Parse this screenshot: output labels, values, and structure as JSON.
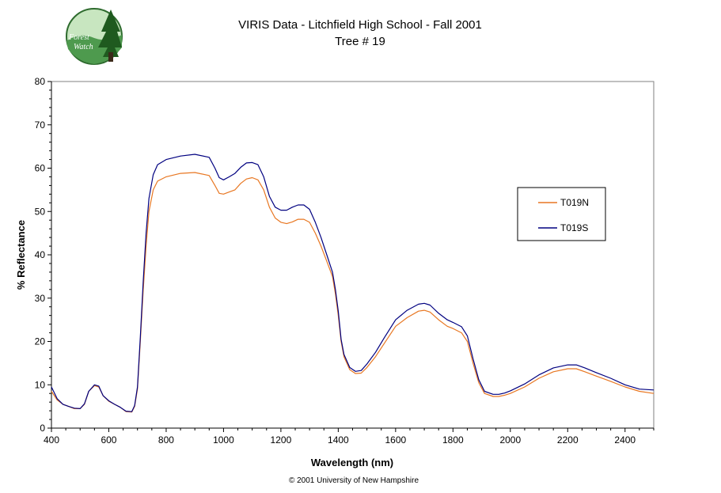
{
  "logo": {
    "line1": "Forest",
    "line2": "Watch"
  },
  "copyright": "© 2001 University of New Hampshire",
  "colors": {
    "T019N": "#e87722",
    "T019S": "#000080"
  },
  "chart_data": {
    "type": "line",
    "title": "VIRIS Data - Litchfield High School - Fall 2001",
    "subtitle": "Tree # 19",
    "xlabel": "Wavelength (nm)",
    "ylabel": "% Reflectance",
    "xlim": [
      400,
      2500
    ],
    "ylim": [
      0,
      80
    ],
    "xticks": [
      400,
      600,
      800,
      1000,
      1200,
      1400,
      1600,
      1800,
      2000,
      2200,
      2400
    ],
    "yticks": [
      0,
      10,
      20,
      30,
      40,
      50,
      60,
      70,
      80
    ],
    "grid": false,
    "legend_position": "right",
    "series": [
      {
        "name": "T019N",
        "points": [
          [
            400,
            8.5
          ],
          [
            420,
            6.5
          ],
          [
            440,
            5.5
          ],
          [
            460,
            5.0
          ],
          [
            480,
            4.5
          ],
          [
            500,
            4.5
          ],
          [
            515,
            5.5
          ],
          [
            530,
            8.5
          ],
          [
            550,
            9.8
          ],
          [
            565,
            9.5
          ],
          [
            580,
            7.5
          ],
          [
            600,
            6.2
          ],
          [
            620,
            5.5
          ],
          [
            640,
            4.8
          ],
          [
            660,
            3.8
          ],
          [
            680,
            3.7
          ],
          [
            690,
            5.0
          ],
          [
            700,
            9.0
          ],
          [
            710,
            20.0
          ],
          [
            720,
            32.0
          ],
          [
            730,
            42.0
          ],
          [
            740,
            50.0
          ],
          [
            755,
            55.0
          ],
          [
            770,
            57.0
          ],
          [
            800,
            58.0
          ],
          [
            850,
            58.8
          ],
          [
            900,
            59.0
          ],
          [
            950,
            58.3
          ],
          [
            970,
            56.0
          ],
          [
            985,
            54.2
          ],
          [
            1000,
            54.0
          ],
          [
            1020,
            54.5
          ],
          [
            1040,
            55.0
          ],
          [
            1060,
            56.5
          ],
          [
            1080,
            57.5
          ],
          [
            1100,
            57.8
          ],
          [
            1120,
            57.3
          ],
          [
            1140,
            55.0
          ],
          [
            1160,
            51.0
          ],
          [
            1180,
            48.5
          ],
          [
            1200,
            47.5
          ],
          [
            1220,
            47.2
          ],
          [
            1240,
            47.6
          ],
          [
            1260,
            48.2
          ],
          [
            1280,
            48.2
          ],
          [
            1300,
            47.5
          ],
          [
            1320,
            45.0
          ],
          [
            1340,
            42.0
          ],
          [
            1360,
            38.5
          ],
          [
            1380,
            35.0
          ],
          [
            1390,
            31.0
          ],
          [
            1400,
            26.0
          ],
          [
            1410,
            20.0
          ],
          [
            1420,
            16.5
          ],
          [
            1440,
            13.5
          ],
          [
            1460,
            12.6
          ],
          [
            1480,
            12.7
          ],
          [
            1500,
            14.0
          ],
          [
            1530,
            16.5
          ],
          [
            1560,
            19.5
          ],
          [
            1600,
            23.5
          ],
          [
            1640,
            25.5
          ],
          [
            1680,
            27.0
          ],
          [
            1700,
            27.2
          ],
          [
            1720,
            26.8
          ],
          [
            1750,
            25.0
          ],
          [
            1780,
            23.5
          ],
          [
            1800,
            23.0
          ],
          [
            1830,
            22.0
          ],
          [
            1850,
            20.0
          ],
          [
            1870,
            15.0
          ],
          [
            1890,
            10.5
          ],
          [
            1910,
            8.0
          ],
          [
            1940,
            7.3
          ],
          [
            1960,
            7.3
          ],
          [
            1980,
            7.6
          ],
          [
            2000,
            8.0
          ],
          [
            2050,
            9.5
          ],
          [
            2100,
            11.5
          ],
          [
            2150,
            13.0
          ],
          [
            2200,
            13.7
          ],
          [
            2230,
            13.7
          ],
          [
            2260,
            13.0
          ],
          [
            2300,
            12.0
          ],
          [
            2350,
            10.8
          ],
          [
            2400,
            9.5
          ],
          [
            2450,
            8.5
          ],
          [
            2500,
            8.0
          ]
        ]
      },
      {
        "name": "T019S",
        "points": [
          [
            400,
            9.5
          ],
          [
            420,
            6.8
          ],
          [
            440,
            5.5
          ],
          [
            460,
            5.0
          ],
          [
            480,
            4.6
          ],
          [
            500,
            4.5
          ],
          [
            515,
            5.6
          ],
          [
            530,
            8.5
          ],
          [
            550,
            10.0
          ],
          [
            565,
            9.7
          ],
          [
            580,
            7.5
          ],
          [
            600,
            6.3
          ],
          [
            620,
            5.5
          ],
          [
            640,
            4.8
          ],
          [
            660,
            3.9
          ],
          [
            680,
            3.8
          ],
          [
            690,
            5.2
          ],
          [
            700,
            9.5
          ],
          [
            710,
            21.0
          ],
          [
            720,
            34.0
          ],
          [
            730,
            45.0
          ],
          [
            740,
            53.0
          ],
          [
            755,
            58.5
          ],
          [
            770,
            60.8
          ],
          [
            800,
            62.0
          ],
          [
            850,
            62.8
          ],
          [
            900,
            63.2
          ],
          [
            950,
            62.5
          ],
          [
            970,
            60.0
          ],
          [
            985,
            57.8
          ],
          [
            1000,
            57.3
          ],
          [
            1020,
            58.0
          ],
          [
            1040,
            58.8
          ],
          [
            1060,
            60.2
          ],
          [
            1080,
            61.2
          ],
          [
            1100,
            61.3
          ],
          [
            1120,
            60.8
          ],
          [
            1140,
            58.0
          ],
          [
            1160,
            53.5
          ],
          [
            1180,
            51.0
          ],
          [
            1200,
            50.3
          ],
          [
            1220,
            50.3
          ],
          [
            1240,
            51.0
          ],
          [
            1260,
            51.5
          ],
          [
            1280,
            51.5
          ],
          [
            1300,
            50.5
          ],
          [
            1320,
            47.5
          ],
          [
            1340,
            44.0
          ],
          [
            1360,
            40.0
          ],
          [
            1380,
            36.0
          ],
          [
            1390,
            32.0
          ],
          [
            1400,
            27.0
          ],
          [
            1410,
            20.5
          ],
          [
            1420,
            17.0
          ],
          [
            1440,
            14.0
          ],
          [
            1460,
            13.1
          ],
          [
            1480,
            13.3
          ],
          [
            1500,
            14.8
          ],
          [
            1530,
            17.5
          ],
          [
            1560,
            20.8
          ],
          [
            1600,
            25.0
          ],
          [
            1640,
            27.2
          ],
          [
            1680,
            28.6
          ],
          [
            1700,
            28.8
          ],
          [
            1720,
            28.4
          ],
          [
            1750,
            26.5
          ],
          [
            1780,
            25.0
          ],
          [
            1800,
            24.4
          ],
          [
            1830,
            23.4
          ],
          [
            1850,
            21.3
          ],
          [
            1870,
            16.0
          ],
          [
            1890,
            11.2
          ],
          [
            1910,
            8.5
          ],
          [
            1940,
            7.8
          ],
          [
            1960,
            7.8
          ],
          [
            1980,
            8.1
          ],
          [
            2000,
            8.6
          ],
          [
            2050,
            10.2
          ],
          [
            2100,
            12.3
          ],
          [
            2150,
            13.9
          ],
          [
            2200,
            14.6
          ],
          [
            2230,
            14.6
          ],
          [
            2260,
            13.9
          ],
          [
            2300,
            12.8
          ],
          [
            2350,
            11.5
          ],
          [
            2400,
            10.0
          ],
          [
            2450,
            9.0
          ],
          [
            2500,
            8.8
          ]
        ]
      }
    ]
  }
}
